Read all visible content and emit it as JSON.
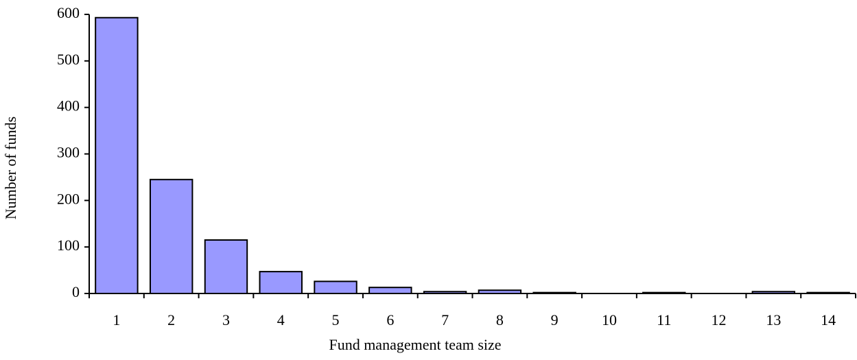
{
  "chart_data": {
    "type": "bar",
    "x_label": "Fund management  team size",
    "y_label": "Number of funds",
    "categories": [
      "1",
      "2",
      "3",
      "4",
      "5",
      "6",
      "7",
      "8",
      "9",
      "10",
      "11",
      "12",
      "13",
      "14"
    ],
    "values": [
      593,
      245,
      115,
      47,
      26,
      13,
      4,
      7,
      2,
      0,
      2,
      0,
      4,
      2
    ],
    "color": "#9999ff",
    "ylim": [
      0,
      600
    ],
    "yticks": [
      0,
      100,
      200,
      300,
      400,
      500,
      600
    ],
    "grid": false
  }
}
